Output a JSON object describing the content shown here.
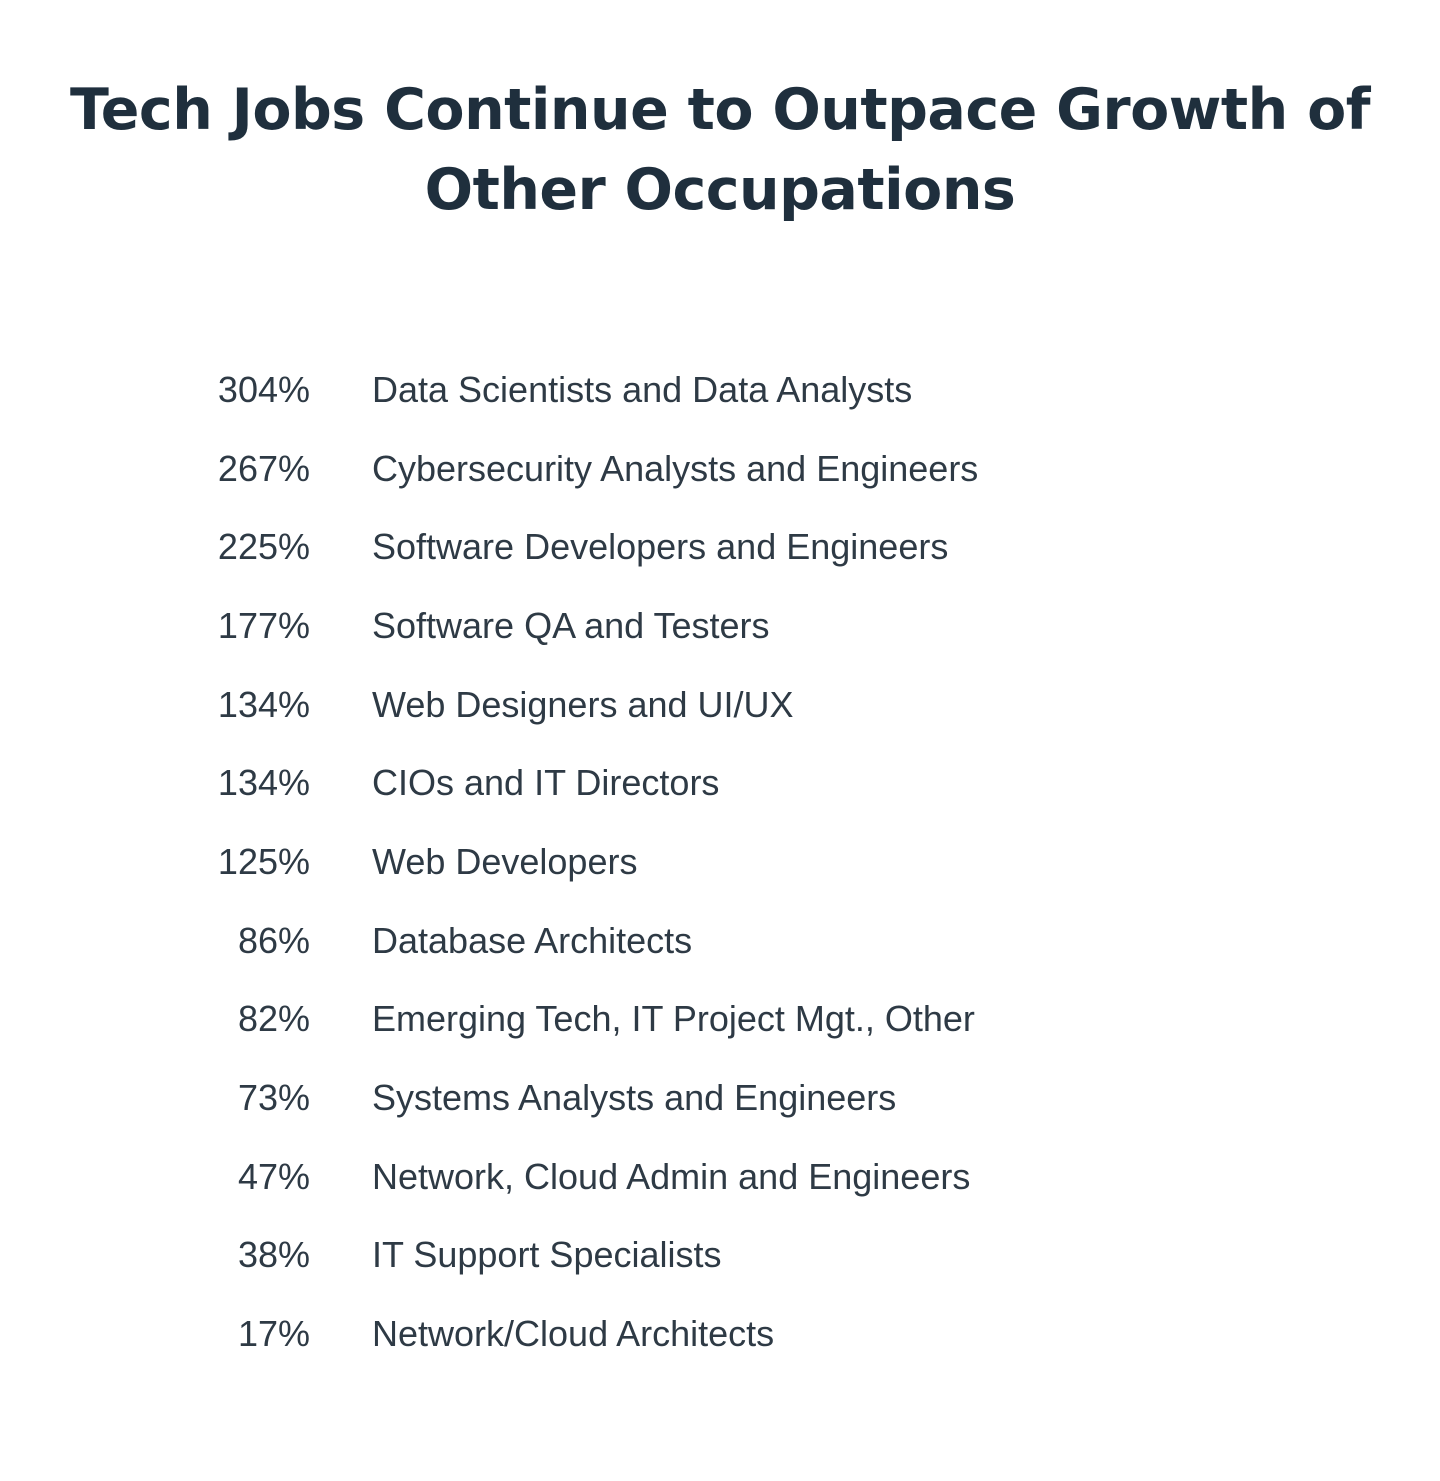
{
  "chart_data": {
    "type": "table",
    "title": "Tech Jobs Continue to Outpace Growth of Other Occupations",
    "title_lines": [
      "Tech Jobs Continue to Outpace Growth of",
      "Other Occupations"
    ],
    "rows": [
      {
        "value": "304%",
        "label": "Data Scientists and Data Analysts"
      },
      {
        "value": "267%",
        "label": "Cybersecurity Analysts and Engineers"
      },
      {
        "value": "225%",
        "label": "Software Developers and Engineers"
      },
      {
        "value": "177%",
        "label": "Software QA and Testers"
      },
      {
        "value": "134%",
        "label": "Web Designers and UI/UX"
      },
      {
        "value": "134%",
        "label": "CIOs and IT Directors"
      },
      {
        "value": "125%",
        "label": "Web Developers"
      },
      {
        "value": "86%",
        "label": "Database Architects"
      },
      {
        "value": "82%",
        "label": "Emerging Tech, IT  Project Mgt., Other"
      },
      {
        "value": "73%",
        "label": "Systems Analysts and Engineers"
      },
      {
        "value": "47%",
        "label": "Network, Cloud Admin and Engineers"
      },
      {
        "value": "38%",
        "label": "IT Support Specialists"
      },
      {
        "value": "17%",
        "label": "Network/Cloud Architects"
      }
    ]
  }
}
